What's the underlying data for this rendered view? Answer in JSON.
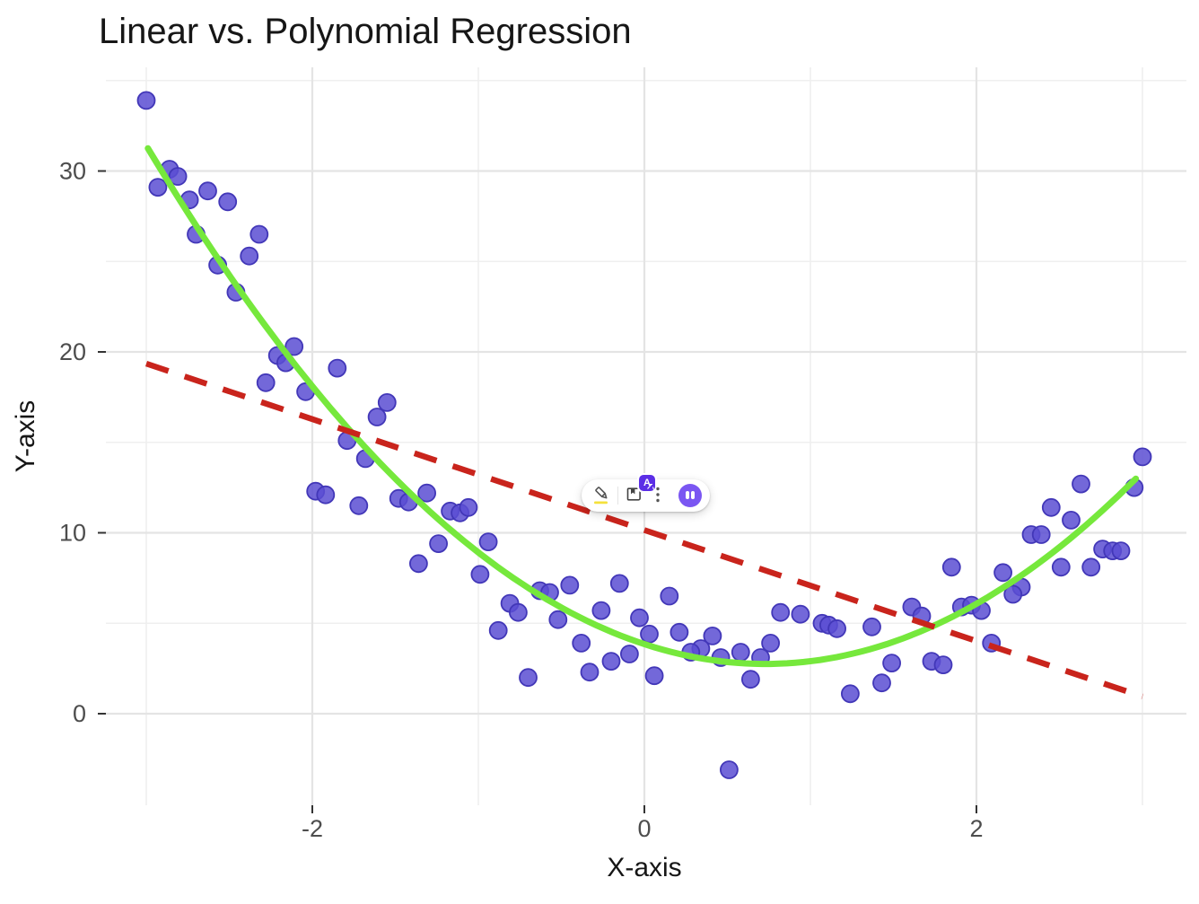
{
  "chart_data": {
    "type": "scatter",
    "title": "Linear vs. Polynomial Regression",
    "xlabel": "X-axis",
    "ylabel": "Y-axis",
    "x_ticks": [
      -2,
      0,
      2
    ],
    "y_ticks": [
      0,
      10,
      20,
      30
    ],
    "x_minor_gridlines": [
      -3,
      -1,
      1,
      3
    ],
    "y_minor_gridlines": [
      5,
      15,
      25,
      35
    ],
    "xlim": [
      -3.25,
      3.25
    ],
    "ylim": [
      -5.1,
      35.7
    ],
    "grid": "on",
    "legend": "none",
    "point_color": "#5b4ed2",
    "point_stroke_color": "#4237b8",
    "poly_line_color": "#76e83c",
    "linear_line_color": "#c9241c",
    "major_grid_color": "#e4e4e4",
    "minor_grid_color": "#efefef",
    "tick_mark_color": "#333333",
    "points": [
      [
        -3.0,
        33.9
      ],
      [
        -2.86,
        30.1
      ],
      [
        -2.81,
        29.7
      ],
      [
        -2.93,
        29.1
      ],
      [
        -2.63,
        28.9
      ],
      [
        -2.74,
        28.4
      ],
      [
        -2.51,
        28.3
      ],
      [
        -2.7,
        26.5
      ],
      [
        -2.32,
        26.5
      ],
      [
        -2.38,
        25.3
      ],
      [
        -2.57,
        24.8
      ],
      [
        -2.46,
        23.3
      ],
      [
        -2.11,
        20.3
      ],
      [
        -2.21,
        19.8
      ],
      [
        -2.16,
        19.4
      ],
      [
        -1.85,
        19.1
      ],
      [
        -2.28,
        18.3
      ],
      [
        -2.04,
        17.8
      ],
      [
        -1.55,
        17.2
      ],
      [
        -1.61,
        16.4
      ],
      [
        -1.79,
        15.1
      ],
      [
        -1.68,
        14.1
      ],
      [
        -1.98,
        12.3
      ],
      [
        -1.92,
        12.1
      ],
      [
        -1.72,
        11.5
      ],
      [
        -1.48,
        11.9
      ],
      [
        -1.42,
        11.7
      ],
      [
        -1.31,
        12.2
      ],
      [
        -1.17,
        11.2
      ],
      [
        -1.11,
        11.1
      ],
      [
        -1.06,
        11.4
      ],
      [
        -1.24,
        9.4
      ],
      [
        -1.36,
        8.3
      ],
      [
        -0.94,
        9.5
      ],
      [
        -0.99,
        7.7
      ],
      [
        -0.63,
        6.8
      ],
      [
        -0.57,
        6.7
      ],
      [
        -0.45,
        7.1
      ],
      [
        -0.81,
        6.1
      ],
      [
        -0.76,
        5.6
      ],
      [
        -0.52,
        5.2
      ],
      [
        -0.88,
        4.6
      ],
      [
        -0.7,
        2.0
      ],
      [
        -0.38,
        3.9
      ],
      [
        -0.33,
        2.3
      ],
      [
        -0.2,
        2.9
      ],
      [
        -0.09,
        3.3
      ],
      [
        -0.15,
        7.2
      ],
      [
        -0.26,
        5.7
      ],
      [
        -0.03,
        5.3
      ],
      [
        0.03,
        4.4
      ],
      [
        0.06,
        2.1
      ],
      [
        0.15,
        6.5
      ],
      [
        0.21,
        4.5
      ],
      [
        0.41,
        4.3
      ],
      [
        0.34,
        3.6
      ],
      [
        0.28,
        3.4
      ],
      [
        0.46,
        3.1
      ],
      [
        0.58,
        3.4
      ],
      [
        0.7,
        3.1
      ],
      [
        0.64,
        1.9
      ],
      [
        0.76,
        3.9
      ],
      [
        0.82,
        5.6
      ],
      [
        0.94,
        5.5
      ],
      [
        0.51,
        -3.1
      ],
      [
        1.07,
        5.0
      ],
      [
        1.11,
        4.9
      ],
      [
        1.16,
        4.7
      ],
      [
        1.24,
        1.1
      ],
      [
        1.37,
        4.8
      ],
      [
        1.43,
        1.7
      ],
      [
        1.49,
        2.8
      ],
      [
        1.61,
        5.9
      ],
      [
        1.67,
        5.4
      ],
      [
        1.85,
        8.1
      ],
      [
        1.91,
        5.9
      ],
      [
        1.97,
        6.0
      ],
      [
        2.03,
        5.7
      ],
      [
        2.09,
        3.9
      ],
      [
        1.73,
        2.9
      ],
      [
        1.8,
        2.7
      ],
      [
        2.16,
        7.8
      ],
      [
        2.27,
        7.0
      ],
      [
        2.22,
        6.6
      ],
      [
        2.33,
        9.9
      ],
      [
        2.39,
        9.9
      ],
      [
        2.45,
        11.4
      ],
      [
        2.57,
        10.7
      ],
      [
        2.51,
        8.1
      ],
      [
        2.69,
        8.1
      ],
      [
        2.63,
        12.7
      ],
      [
        2.76,
        9.1
      ],
      [
        2.82,
        9.0
      ],
      [
        2.87,
        9.0
      ],
      [
        2.95,
        12.5
      ],
      [
        3.0,
        14.2
      ]
    ],
    "series": [
      {
        "name": "polynomial fit",
        "type": "quadratic",
        "style": "solid",
        "a": 2.06,
        "h": 0.73,
        "k": 2.75,
        "x_start": -2.99,
        "x_end": 3.0
      },
      {
        "name": "linear fit",
        "type": "line",
        "style": "dashed",
        "x1": -3.0,
        "y1": 19.35,
        "x2": 3.0,
        "y2": 0.95
      }
    ]
  },
  "overlay_toolbar": {
    "translate_badge_letter": "A",
    "accent_purple": "#7a56f2",
    "badge_color": "#5b2ee6",
    "highlight_yellow": "#f5e13c"
  }
}
